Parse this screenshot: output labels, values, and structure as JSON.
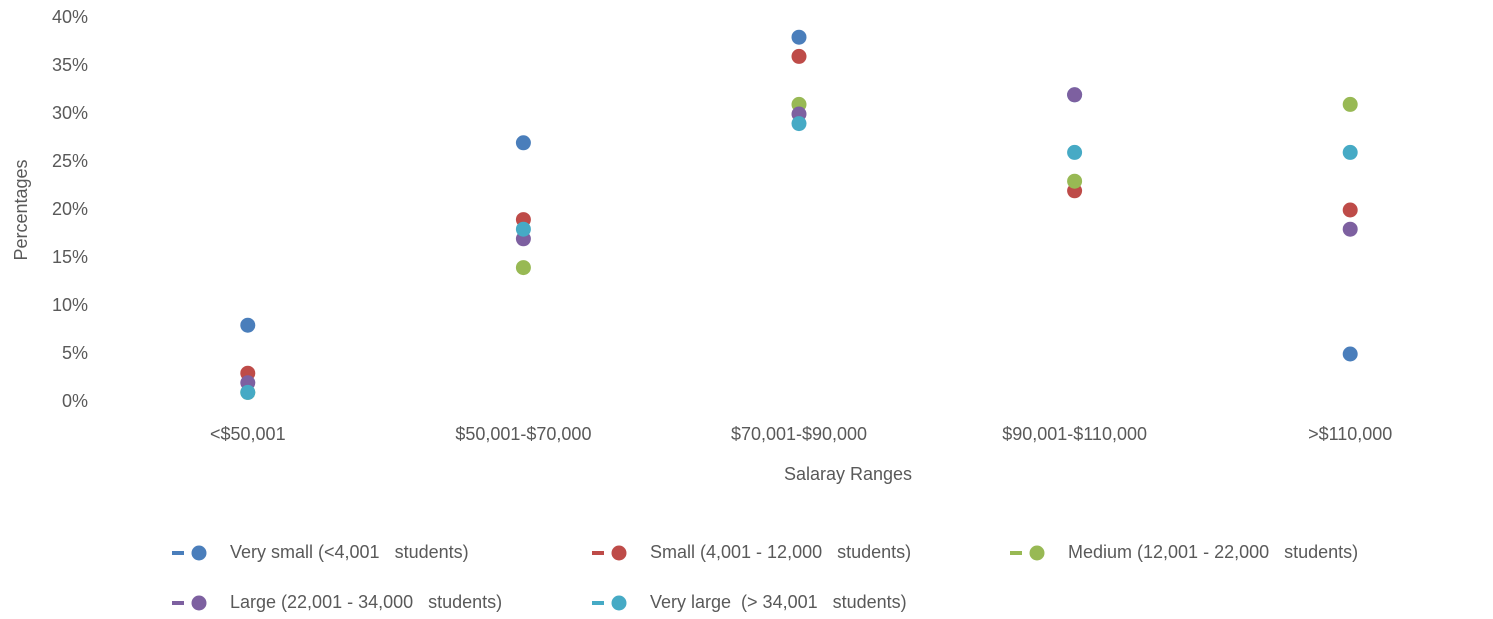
{
  "chart_data": {
    "type": "scatter",
    "x_label": "Salaray Ranges",
    "y_label": "Percentages",
    "categories": [
      "<$50,001",
      "$50,001-$70,000",
      "$70,001-$90,000",
      "$90,001-$110,000",
      ">$110,000"
    ],
    "series": [
      {
        "name": "Very small (<4,001   students)",
        "color": "#4a7ebb",
        "values": [
          8,
          27,
          38,
          32,
          5
        ]
      },
      {
        "name": "Small (4,001 - 12,000   students)",
        "color": "#be4b48",
        "values": [
          3,
          19,
          36,
          22,
          20
        ]
      },
      {
        "name": "Medium (12,001 - 22,000   students)",
        "color": "#98b954",
        "values": [
          1,
          14,
          31,
          23,
          31
        ]
      },
      {
        "name": "Large (22,001 - 34,000   students)",
        "color": "#7d60a0",
        "values": [
          2,
          17,
          30,
          32,
          18
        ]
      },
      {
        "name": "Very large  (> 34,001   students)",
        "color": "#46aac5",
        "values": [
          1,
          18,
          29,
          26,
          26
        ]
      }
    ],
    "ylim": [
      0,
      40
    ],
    "yticks": [
      {
        "value": 0,
        "label": "0%"
      },
      {
        "value": 5,
        "label": "5%"
      },
      {
        "value": 10,
        "label": "10%"
      },
      {
        "value": 15,
        "label": "15%"
      },
      {
        "value": 20,
        "label": "20%"
      },
      {
        "value": 25,
        "label": "25%"
      },
      {
        "value": 30,
        "label": "30%"
      },
      {
        "value": 35,
        "label": "35%"
      },
      {
        "value": 40,
        "label": "40%"
      }
    ],
    "grid": false,
    "legend": "bottom"
  }
}
